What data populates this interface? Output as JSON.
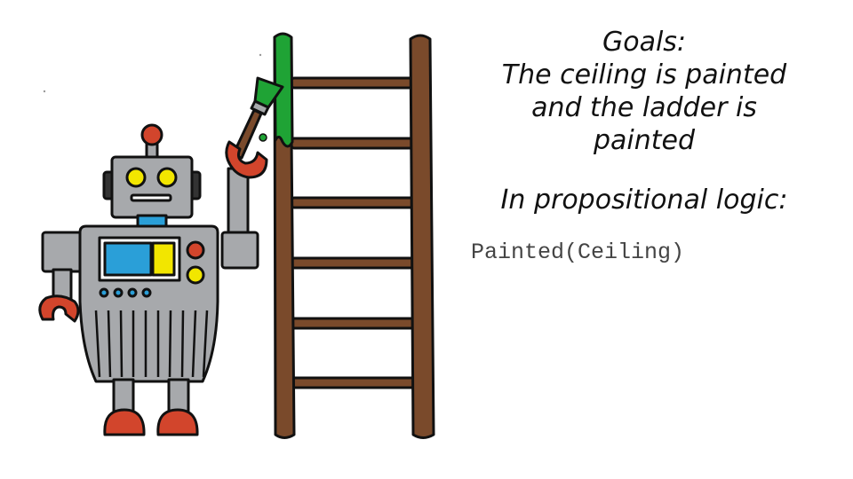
{
  "slide": {
    "goals_heading": "Goals:",
    "goal_line_1": "The ceiling is painted",
    "goal_line_2": "and the ladder is",
    "goal_line_3": "painted",
    "logic_heading": "In propositional logic:",
    "logic_formula": "Painted(Ceiling)"
  },
  "colors": {
    "robot_gray": "#a7a9ac",
    "robot_red": "#d2452c",
    "robot_blue": "#2a9fd8",
    "robot_yellow": "#f2e600",
    "ladder_brown": "#7a4a2b",
    "paint_green": "#1fa335"
  }
}
